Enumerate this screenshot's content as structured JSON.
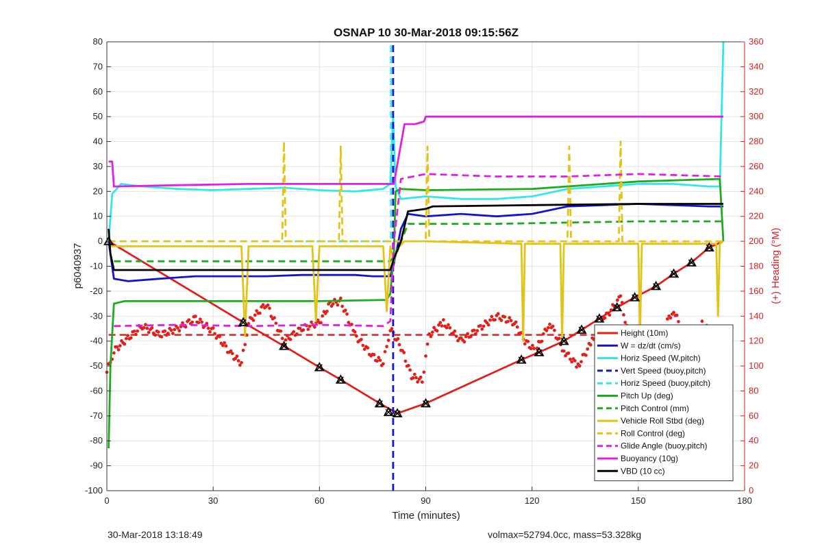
{
  "footer": {
    "timestamp": "30-Mar-2018 13:18:49",
    "summary": "volmax=52794.0cc, mass=53.328kg"
  },
  "chart_data": {
    "type": "line",
    "title": "OSNAP 10 30-Mar-2018 09:15:56Z",
    "xlabel": "Time (minutes)",
    "ylabel": "p6040937",
    "y2label": "(+) Heading (°M)",
    "xlim": [
      0,
      180
    ],
    "ylim": [
      -100,
      80
    ],
    "y2lim": [
      0,
      360
    ],
    "xticks": [
      0,
      30,
      60,
      90,
      120,
      150,
      180
    ],
    "yticks": [
      -100,
      -90,
      -80,
      -70,
      -60,
      -50,
      -40,
      -30,
      -20,
      -10,
      0,
      10,
      20,
      30,
      40,
      50,
      60,
      70,
      80
    ],
    "y2ticks": [
      0,
      20,
      40,
      60,
      80,
      100,
      120,
      140,
      160,
      180,
      200,
      220,
      240,
      260,
      280,
      300,
      320,
      340,
      360
    ],
    "grid": true,
    "legend_position": "bottom-right",
    "colors": {
      "height": "#e0201b",
      "w": "#1515c8",
      "horiz": "#33e6ea",
      "pitch": "#1faa1f",
      "roll": "#e3c21a",
      "glide": "#e020e0",
      "vbd": "#000000",
      "heading": "#e0201b",
      "right_axis": "#d42020"
    },
    "series": [
      {
        "name": "Height (10m)",
        "style": "solid",
        "color": "#e0201b",
        "x": [
          0.5,
          38.5,
          50,
          60,
          66,
          77,
          82,
          90,
          117,
          122,
          129,
          134,
          139,
          144,
          149,
          155,
          160,
          165,
          170,
          174
        ],
        "y": [
          0,
          -32.5,
          -42,
          -50.5,
          -55.5,
          -65,
          -69,
          -65,
          -47.5,
          -44.5,
          -40,
          -35.5,
          -31,
          -26.5,
          -22.5,
          -18,
          -13,
          -8.5,
          -2.5,
          0
        ]
      },
      {
        "name": "W = dz/dt (cm/s)",
        "style": "solid",
        "color": "#1515c8",
        "x": [
          0.5,
          2,
          6,
          15,
          25,
          35,
          45,
          55,
          65,
          70,
          75,
          80,
          81,
          83,
          85,
          90,
          100,
          110,
          120,
          130,
          140,
          150,
          160,
          170,
          174
        ],
        "y": [
          0,
          -15,
          -16,
          -15,
          -14,
          -14,
          -14,
          -13.5,
          -13.5,
          -13.5,
          -14,
          -14,
          -9,
          5,
          11,
          10,
          11,
          10,
          11,
          14,
          14.5,
          15,
          14.5,
          14,
          14
        ]
      },
      {
        "name": "Horiz Speed (W,pitch)",
        "style": "solid",
        "color": "#33e6ea",
        "x": [
          0.5,
          1.5,
          4,
          10,
          20,
          30,
          40,
          50,
          60,
          70,
          78,
          80,
          80.8,
          81.5,
          83,
          90,
          100,
          110,
          120,
          130,
          140,
          150,
          160,
          170,
          173,
          174
        ],
        "y": [
          0,
          19,
          23,
          22,
          21,
          20.5,
          21,
          21.5,
          20.5,
          20,
          21,
          23,
          50,
          22,
          17,
          18,
          17,
          17,
          18,
          21,
          22,
          23,
          23,
          22,
          22,
          80
        ]
      },
      {
        "name": "Vert Speed (buoy,pitch)",
        "style": "dashed",
        "color": "#1515c8",
        "x": [
          80.8,
          80.8
        ],
        "y": [
          -100,
          80
        ]
      },
      {
        "name": "Horiz Speed (buoy,pitch)",
        "style": "dashed",
        "color": "#33e6ea",
        "x": [
          0.5,
          80,
          80.2,
          80.2
        ],
        "y": [
          0,
          0,
          0,
          80
        ]
      },
      {
        "name": "Pitch Up (deg)",
        "style": "solid",
        "color": "#1faa1f",
        "x": [
          0.5,
          1,
          2,
          5,
          20,
          40,
          60,
          79,
          80,
          81,
          81.5,
          83,
          90,
          120,
          150,
          173,
          174
        ],
        "y": [
          -83,
          -50,
          -25,
          -24,
          -24,
          -24,
          -24,
          -23.5,
          -21,
          -5,
          20,
          21,
          20.5,
          21,
          24,
          25,
          0
        ]
      },
      {
        "name": "Pitch Control (mm)",
        "style": "dashed",
        "color": "#1faa1f",
        "x": [
          2,
          80,
          82,
          85,
          110,
          150,
          174
        ],
        "y": [
          -8,
          -8,
          -4,
          7,
          7,
          8,
          8
        ]
      },
      {
        "name": "Vehicle Roll Stbd (deg)",
        "style": "solid",
        "color": "#e3c21a",
        "x": [
          1,
          38,
          39,
          40,
          58,
          59,
          60,
          78,
          79,
          80,
          81,
          82,
          84,
          90,
          117,
          117.5,
          118,
          128,
          128.5,
          129,
          150,
          150.5,
          151,
          172,
          172.5,
          173,
          174
        ],
        "y": [
          -2,
          -2,
          -38,
          -2,
          -2,
          -32,
          -2,
          -2,
          -28,
          -2,
          -8,
          -3,
          0,
          0,
          -1,
          -40,
          -1,
          -1,
          -40,
          -1,
          -1,
          -38,
          -1,
          -1,
          -30,
          -1,
          0
        ]
      },
      {
        "name": "Roll Control (deg)",
        "style": "dashed",
        "color": "#e3c21a",
        "x": [
          0.5,
          49.5,
          50,
          50.5,
          65.5,
          66,
          66.5,
          81,
          90,
          90.5,
          91,
          130,
          130.5,
          131,
          144.5,
          145,
          145.5,
          174
        ],
        "y": [
          0,
          0,
          40,
          0,
          0,
          38,
          0,
          0,
          0,
          38,
          0,
          0,
          38,
          0,
          0,
          40,
          0,
          0
        ]
      },
      {
        "name": "Glide Angle (buoy,pitch)",
        "style": "dashed",
        "color": "#e020e0",
        "x": [
          2,
          20,
          40,
          60,
          78,
          80,
          81,
          83,
          90,
          110,
          130,
          150,
          174
        ],
        "y": [
          -34,
          -33.5,
          -34,
          -33.5,
          -34,
          -32,
          0,
          25,
          27,
          26,
          26,
          27,
          26
        ]
      },
      {
        "name": "Buoyancy (10g)",
        "style": "solid",
        "color": "#e020e0",
        "x": [
          0.5,
          1.5,
          2,
          20,
          40,
          60,
          80,
          81,
          84,
          87,
          89.5,
          90,
          120,
          150,
          174
        ],
        "y": [
          32,
          32,
          22,
          22.5,
          23,
          23,
          23,
          23,
          47,
          47,
          48,
          50,
          50,
          50,
          50
        ]
      },
      {
        "name": "VBD (10 cc)",
        "style": "solid",
        "color": "#000000",
        "x": [
          0.5,
          1,
          2,
          10,
          40,
          80,
          81,
          83,
          85,
          90,
          92,
          120,
          150,
          174
        ],
        "y": [
          5,
          -5,
          -11.5,
          -11.5,
          -11.5,
          -11.5,
          -7,
          0,
          12,
          13,
          14,
          14.5,
          15,
          15
        ]
      }
    ],
    "heading": {
      "name": "Heading",
      "axis": "right",
      "color": "#e0201b",
      "target": 125,
      "x": [
        0,
        2,
        5,
        10,
        15,
        20,
        25,
        30,
        35,
        38,
        40,
        45,
        50,
        55,
        60,
        63,
        66,
        70,
        75,
        78,
        80,
        83,
        86,
        89,
        91,
        95,
        100,
        105,
        110,
        115,
        118,
        121,
        125,
        129,
        133,
        137,
        141,
        145,
        148,
        152,
        156,
        160,
        164,
        168,
        172,
        174
      ],
      "y": [
        95,
        112,
        120,
        132,
        125,
        130,
        138,
        128,
        110,
        102,
        135,
        150,
        120,
        130,
        135,
        150,
        152,
        125,
        108,
        102,
        130,
        115,
        92,
        88,
        125,
        135,
        120,
        130,
        140,
        135,
        120,
        112,
        135,
        112,
        100,
        120,
        140,
        155,
        112,
        130,
        125,
        145,
        115,
        135,
        120,
        108
      ]
    },
    "markers": {
      "name": "waypoints",
      "shape": "triangle-x",
      "x": [
        0.5,
        38.5,
        50,
        60,
        66,
        77,
        79.5,
        82,
        90,
        117,
        122,
        129,
        134,
        139,
        144,
        149,
        155,
        160,
        165,
        170
      ],
      "y": [
        0,
        -32.5,
        -42,
        -50.5,
        -55.5,
        -65,
        -68.5,
        -69,
        -65,
        -47.5,
        -44.5,
        -40,
        -35.5,
        -31,
        -26.5,
        -22.5,
        -18,
        -13,
        -8.5,
        -2.5
      ]
    }
  }
}
